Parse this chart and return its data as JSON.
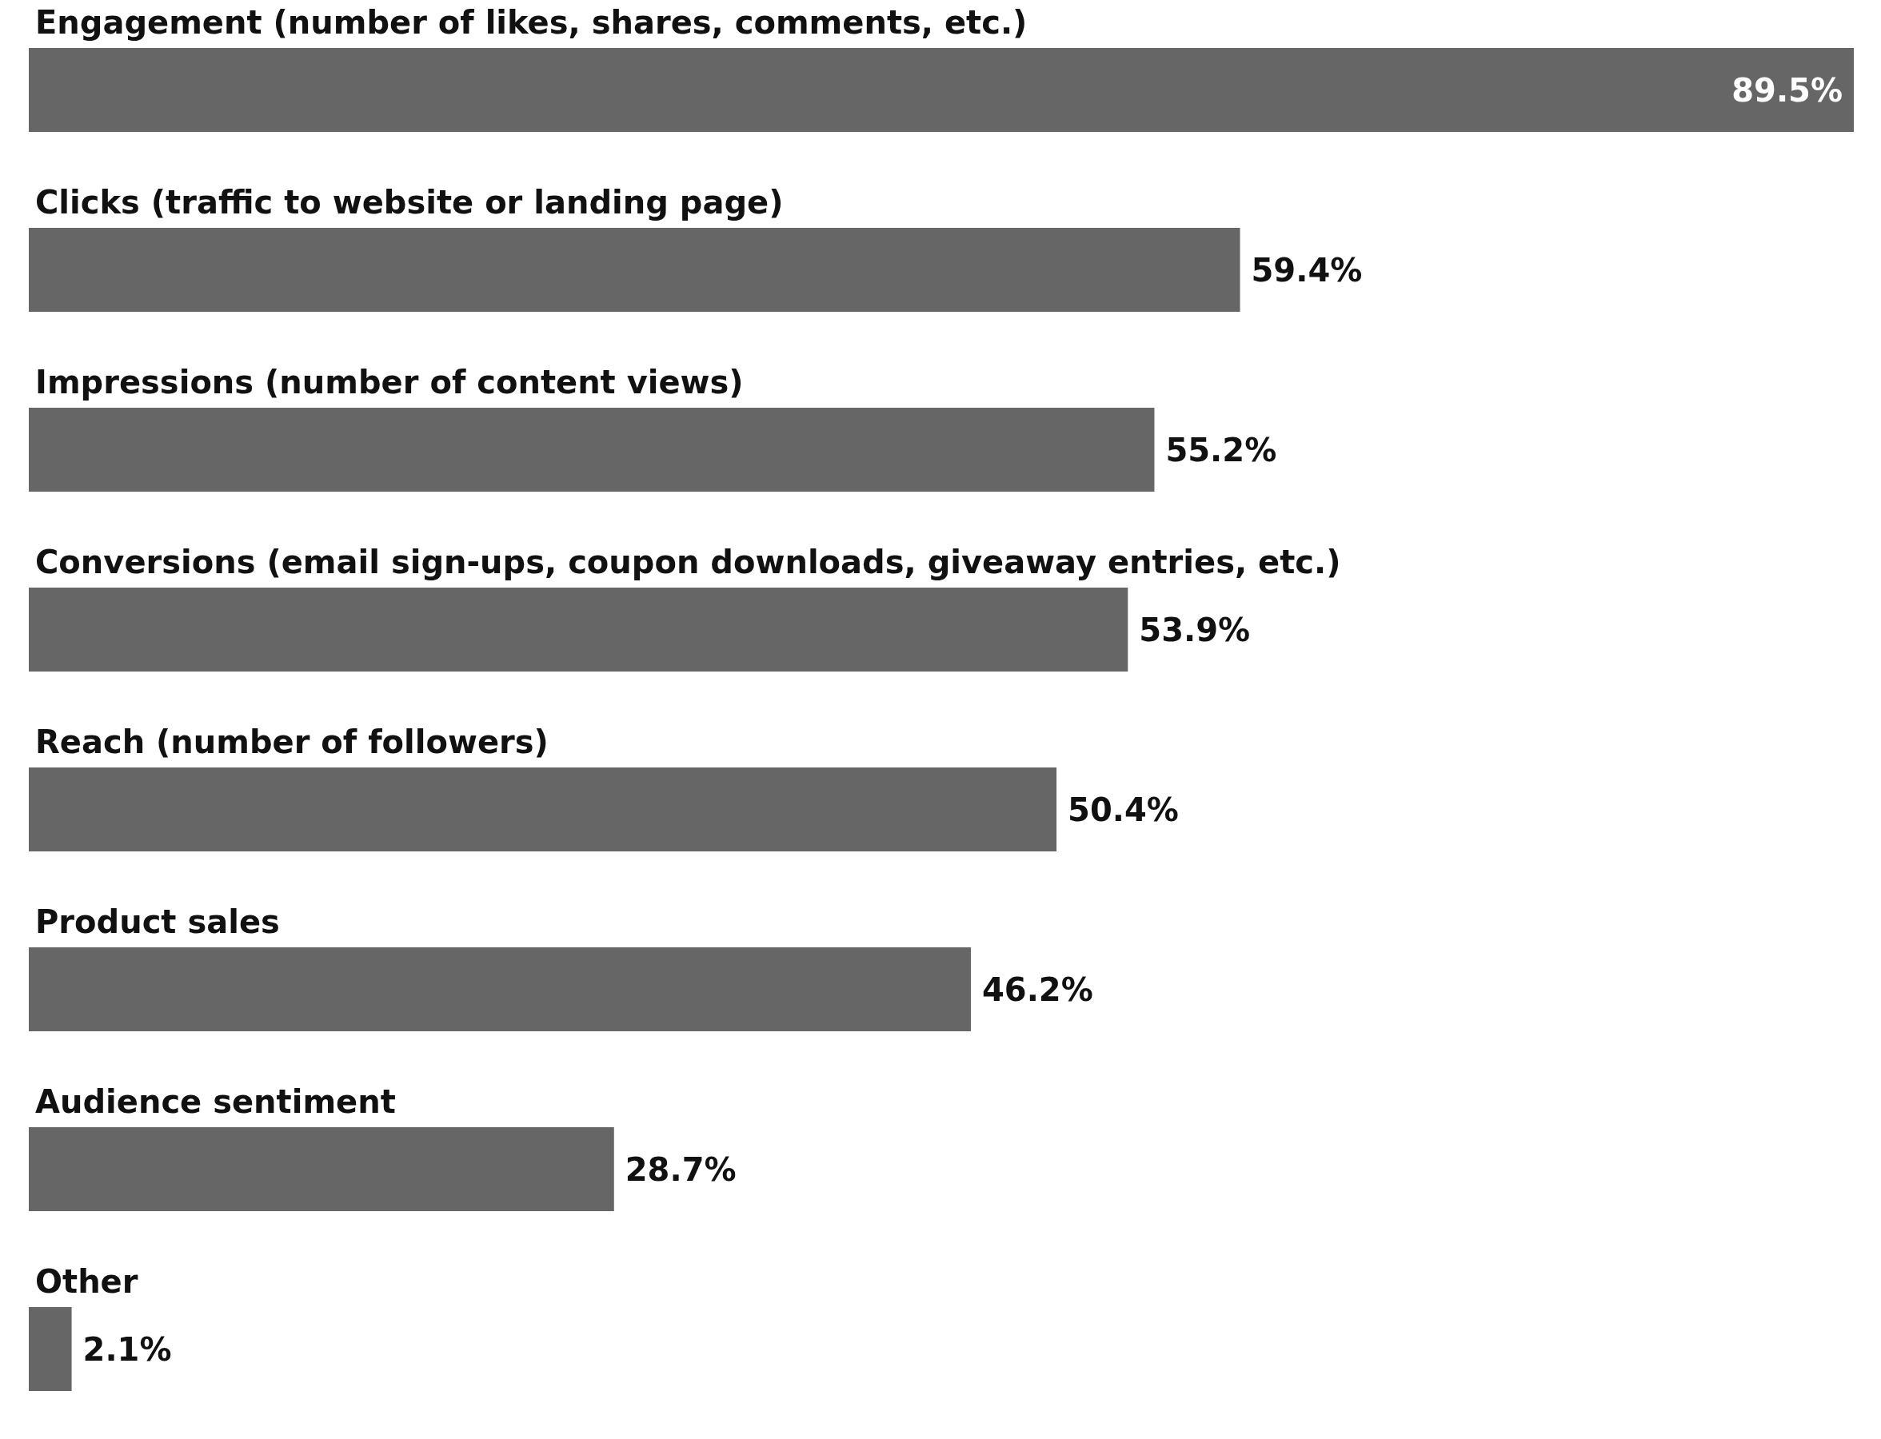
{
  "chart_data": {
    "type": "bar",
    "orientation": "horizontal",
    "categories": [
      "Engagement (number of likes, shares, comments, etc.)",
      "Clicks (traffic to website or landing page)",
      "Impressions (number of content views)",
      "Conversions (email sign-ups, coupon downloads, giveaway entries, etc.)",
      "Reach (number of followers)",
      "Product sales",
      "Audience sentiment",
      "Other"
    ],
    "values": [
      89.5,
      59.4,
      55.2,
      53.9,
      50.4,
      46.2,
      28.7,
      2.1
    ],
    "value_labels": [
      "89.5%",
      "59.4%",
      "55.2%",
      "53.9%",
      "50.4%",
      "46.2%",
      "28.7%",
      "2.1%"
    ],
    "color": "#666666"
  }
}
